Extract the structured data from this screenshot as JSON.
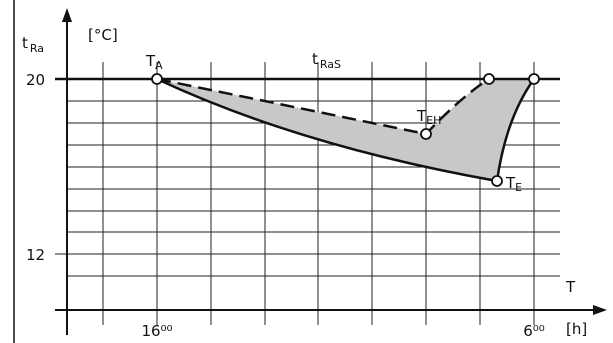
{
  "y_axis": {
    "symbol": "t",
    "subscript": "Ra",
    "unit": "[°C]",
    "labels": [
      "20",
      "12"
    ]
  },
  "x_axis": {
    "symbol": "T",
    "unit": "[h]",
    "labels": [
      "16⁰⁰",
      "6⁰⁰"
    ]
  },
  "points": [
    {
      "symbol": "T",
      "subscript": "A"
    },
    {
      "symbol": "T",
      "subscript": "EH"
    },
    {
      "symbol": "T",
      "subscript": "E"
    }
  ],
  "setpoint": {
    "symbol": "t",
    "subscript": "RaS"
  }
}
